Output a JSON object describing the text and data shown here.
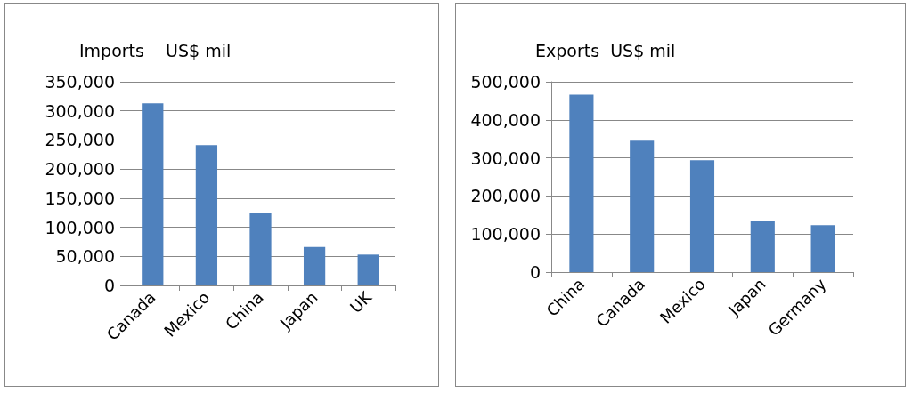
{
  "chart_data": [
    {
      "type": "bar",
      "title": "Imports    US$ mil",
      "categories": [
        "Canada",
        "Mexico",
        "China",
        "Japan",
        "UK"
      ],
      "values": [
        313000,
        241000,
        124000,
        66000,
        53000
      ],
      "color": "#4f81bd",
      "ylim": [
        0,
        350000
      ],
      "yticks": [
        0,
        {
          "value": 50000,
          "label": "50,000"
        },
        {
          "value": 100000,
          "label": "100,000"
        },
        {
          "value": 150000,
          "label": "150,000"
        },
        {
          "value": 200000,
          "label": "200,000"
        },
        {
          "value": 250000,
          "label": "250,000"
        },
        {
          "value": 300000,
          "label": "300,000"
        },
        {
          "value": 350000,
          "label": "350,000"
        }
      ],
      "grid": "y"
    },
    {
      "type": "bar",
      "title": "Exports  US$ mil",
      "categories": [
        "China",
        "Canada",
        "Mexico",
        "Japan",
        "Germany"
      ],
      "values": [
        466000,
        345000,
        294000,
        133000,
        123000
      ],
      "color": "#4f81bd",
      "ylim": [
        0,
        500000
      ],
      "yticks": [
        0,
        {
          "value": 100000,
          "label": "100,000"
        },
        {
          "value": 200000,
          "label": "200,000"
        },
        {
          "value": 300000,
          "label": "300,000"
        },
        {
          "value": 400000,
          "label": "400,000"
        },
        {
          "value": 500000,
          "label": "500,000"
        }
      ],
      "grid": "y"
    }
  ]
}
